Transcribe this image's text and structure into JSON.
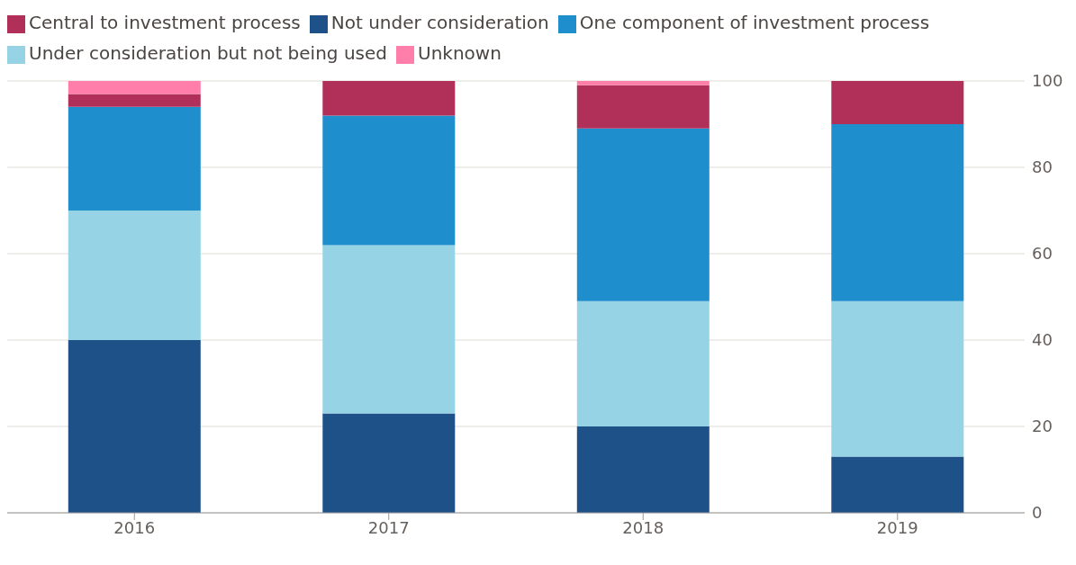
{
  "chart_data": {
    "type": "bar",
    "stacked": true,
    "categories": [
      "2016",
      "2017",
      "2018",
      "2019"
    ],
    "series": [
      {
        "name": "Not under consideration",
        "color": "#1f5189",
        "values": [
          40,
          23,
          20,
          13
        ]
      },
      {
        "name": "Under consideration but not being used",
        "color": "#96d3e5",
        "values": [
          30,
          39,
          29,
          36
        ]
      },
      {
        "name": "One component of investment process",
        "color": "#1f8ecd",
        "values": [
          24,
          30,
          40,
          41
        ]
      },
      {
        "name": "Central to investment process",
        "color": "#b1305a",
        "values": [
          3,
          8,
          10,
          10
        ]
      },
      {
        "name": "Unknown",
        "color": "#ff7faa",
        "values": [
          3,
          0,
          1,
          0
        ]
      }
    ],
    "ylim": [
      0,
      100
    ],
    "yticks": [
      0,
      20,
      40,
      60,
      80,
      100
    ],
    "grid": "y",
    "legend": "top left"
  }
}
